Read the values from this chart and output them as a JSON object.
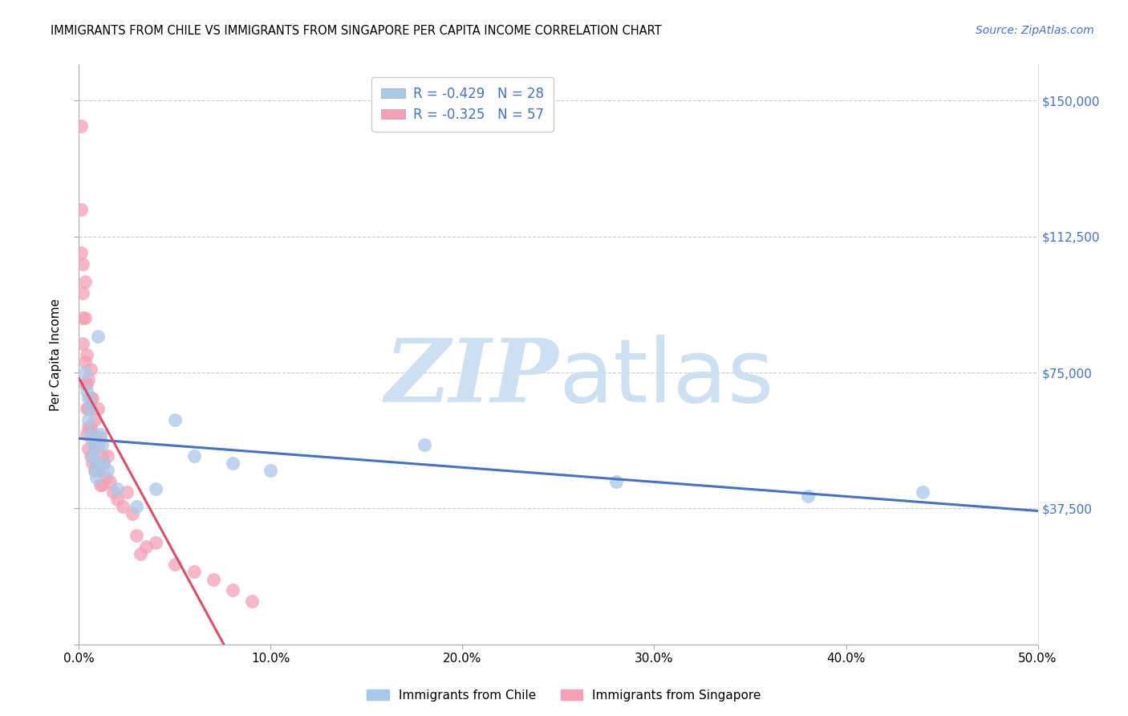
{
  "title": "IMMIGRANTS FROM CHILE VS IMMIGRANTS FROM SINGAPORE PER CAPITA INCOME CORRELATION CHART",
  "source": "Source: ZipAtlas.com",
  "ylabel": "Per Capita Income",
  "ylim": [
    0,
    160000
  ],
  "xlim": [
    0.0,
    0.5
  ],
  "legend_label1": "R = -0.429   N = 28",
  "legend_label2": "R = -0.325   N = 57",
  "color_chile": "#a8c8e8",
  "color_singapore": "#f4a0b5",
  "line_color_chile": "#4472c4",
  "line_color_singapore": "#d94f6a",
  "chile_x": [
    0.003,
    0.004,
    0.005,
    0.005,
    0.006,
    0.006,
    0.007,
    0.007,
    0.008,
    0.008,
    0.009,
    0.009,
    0.01,
    0.011,
    0.012,
    0.013,
    0.015,
    0.02,
    0.03,
    0.04,
    0.05,
    0.06,
    0.08,
    0.1,
    0.18,
    0.28,
    0.38,
    0.44
  ],
  "chile_y": [
    75000,
    70000,
    68000,
    62000,
    65000,
    58000,
    56000,
    52000,
    54000,
    48000,
    50000,
    46000,
    85000,
    58000,
    55000,
    50000,
    48000,
    43000,
    38000,
    43000,
    62000,
    52000,
    50000,
    48000,
    55000,
    45000,
    41000,
    42000
  ],
  "singapore_x": [
    0.001,
    0.001,
    0.001,
    0.002,
    0.002,
    0.002,
    0.002,
    0.003,
    0.003,
    0.003,
    0.003,
    0.004,
    0.004,
    0.004,
    0.004,
    0.005,
    0.005,
    0.005,
    0.005,
    0.006,
    0.006,
    0.006,
    0.006,
    0.007,
    0.007,
    0.007,
    0.008,
    0.008,
    0.008,
    0.009,
    0.009,
    0.01,
    0.01,
    0.01,
    0.011,
    0.011,
    0.011,
    0.012,
    0.012,
    0.013,
    0.014,
    0.015,
    0.016,
    0.018,
    0.02,
    0.023,
    0.025,
    0.028,
    0.03,
    0.032,
    0.035,
    0.04,
    0.05,
    0.06,
    0.07,
    0.08,
    0.09
  ],
  "singapore_y": [
    143000,
    120000,
    108000,
    105000,
    97000,
    90000,
    83000,
    100000,
    90000,
    78000,
    72000,
    80000,
    72000,
    65000,
    58000,
    73000,
    65000,
    60000,
    54000,
    76000,
    68000,
    60000,
    52000,
    68000,
    58000,
    50000,
    62000,
    55000,
    48000,
    57000,
    49000,
    65000,
    55000,
    48000,
    57000,
    50000,
    44000,
    52000,
    44000,
    50000,
    46000,
    52000,
    45000,
    42000,
    40000,
    38000,
    42000,
    36000,
    30000,
    25000,
    27000,
    28000,
    22000,
    20000,
    18000,
    15000,
    12000
  ],
  "xticks": [
    0.0,
    0.1,
    0.2,
    0.3,
    0.4,
    0.5
  ],
  "xtick_labels": [
    "0.0%",
    "10.0%",
    "20.0%",
    "30.0%",
    "40.0%",
    "50.0%"
  ],
  "yticks": [
    0,
    37500,
    75000,
    112500,
    150000
  ],
  "ytick_labels_right": [
    "$37,500",
    "$75,000",
    "$112,500",
    "$150,000"
  ],
  "grid_color": "#cccccc",
  "background_color": "#ffffff"
}
